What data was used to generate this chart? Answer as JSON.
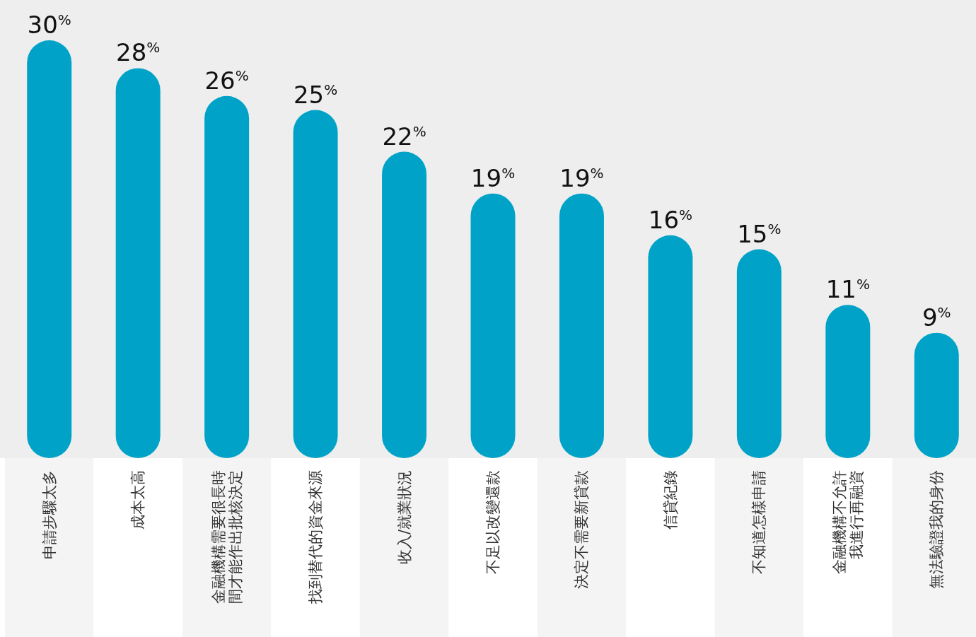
{
  "chart_data": {
    "type": "bar",
    "categories": [
      "申請步驟太多",
      "成本太高",
      "金融機構需要很長時間才能作出批核決定",
      "找到替代的資金來源",
      "收入/就業狀況",
      "不足以改變還款",
      "決定不需要新貸款",
      "信貸紀錄",
      "不知道怎樣申請",
      "金融機構不允許我進行再融資",
      "無法驗證我的身份"
    ],
    "values": [
      30,
      28,
      26,
      25,
      22,
      19,
      19,
      16,
      15,
      11,
      9
    ],
    "value_labels": [
      "30$^{%}$",
      "28$^{%}$",
      "26$^{%}$",
      "25$^{%}$",
      "22$^{%}$",
      "19$^{%}$",
      "19$^{%}$",
      "16$^{%}$",
      "15$^{%}$",
      "11$^{%}$",
      "9$^{%}$"
    ],
    "color": "#00a3c7"
  }
}
